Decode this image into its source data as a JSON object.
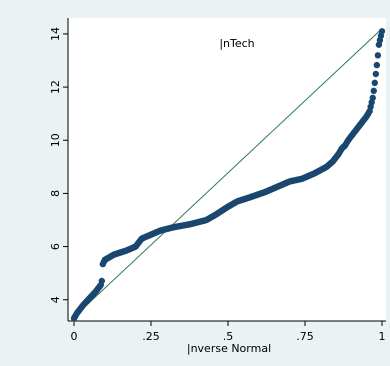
{
  "chart_data": {
    "type": "scatter",
    "title": "",
    "annotation": "|nTech",
    "xlabel": "|nverse Normal",
    "ylabel": "",
    "xlim": [
      0,
      1
    ],
    "ylim": [
      3.2,
      14.6
    ],
    "x_ticks": [
      0,
      0.25,
      0.5,
      0.75,
      1
    ],
    "x_tick_labels": [
      "0",
      ".25",
      ".5",
      ".75",
      "1"
    ],
    "y_ticks": [
      4,
      6,
      8,
      10,
      12,
      14
    ],
    "y_tick_labels": [
      "4",
      "6",
      "8",
      "10",
      "12",
      "14"
    ],
    "grid": false,
    "colors": {
      "marker": "#1a476f",
      "reference_line": "#2e7d5b",
      "background": "#eaf2f3",
      "plot_background": "#ffffff"
    },
    "reference_line": {
      "x": [
        0,
        1
      ],
      "y": [
        3.35,
        14.2
      ]
    },
    "curve_knots": {
      "x": [
        0.0,
        0.01,
        0.03,
        0.05,
        0.07,
        0.09,
        0.092,
        0.1,
        0.13,
        0.17,
        0.2,
        0.22,
        0.25,
        0.28,
        0.32,
        0.38,
        0.43,
        0.46,
        0.5,
        0.53,
        0.57,
        0.62,
        0.66,
        0.7,
        0.74,
        0.78,
        0.82,
        0.84,
        0.86,
        0.87,
        0.88,
        0.89,
        0.91,
        0.93,
        0.95,
        0.96,
        0.97,
        0.975,
        0.98,
        0.985,
        0.99,
        1.0
      ],
      "y": [
        3.3,
        3.5,
        3.8,
        4.05,
        4.3,
        4.6,
        5.3,
        5.5,
        5.7,
        5.85,
        6.0,
        6.3,
        6.45,
        6.6,
        6.72,
        6.85,
        7.0,
        7.2,
        7.5,
        7.7,
        7.85,
        8.05,
        8.25,
        8.45,
        8.55,
        8.75,
        9.0,
        9.2,
        9.5,
        9.7,
        9.8,
        10.0,
        10.3,
        10.6,
        10.9,
        11.1,
        11.6,
        12.0,
        12.5,
        13.0,
        13.6,
        14.1
      ]
    },
    "n_points": 300
  }
}
